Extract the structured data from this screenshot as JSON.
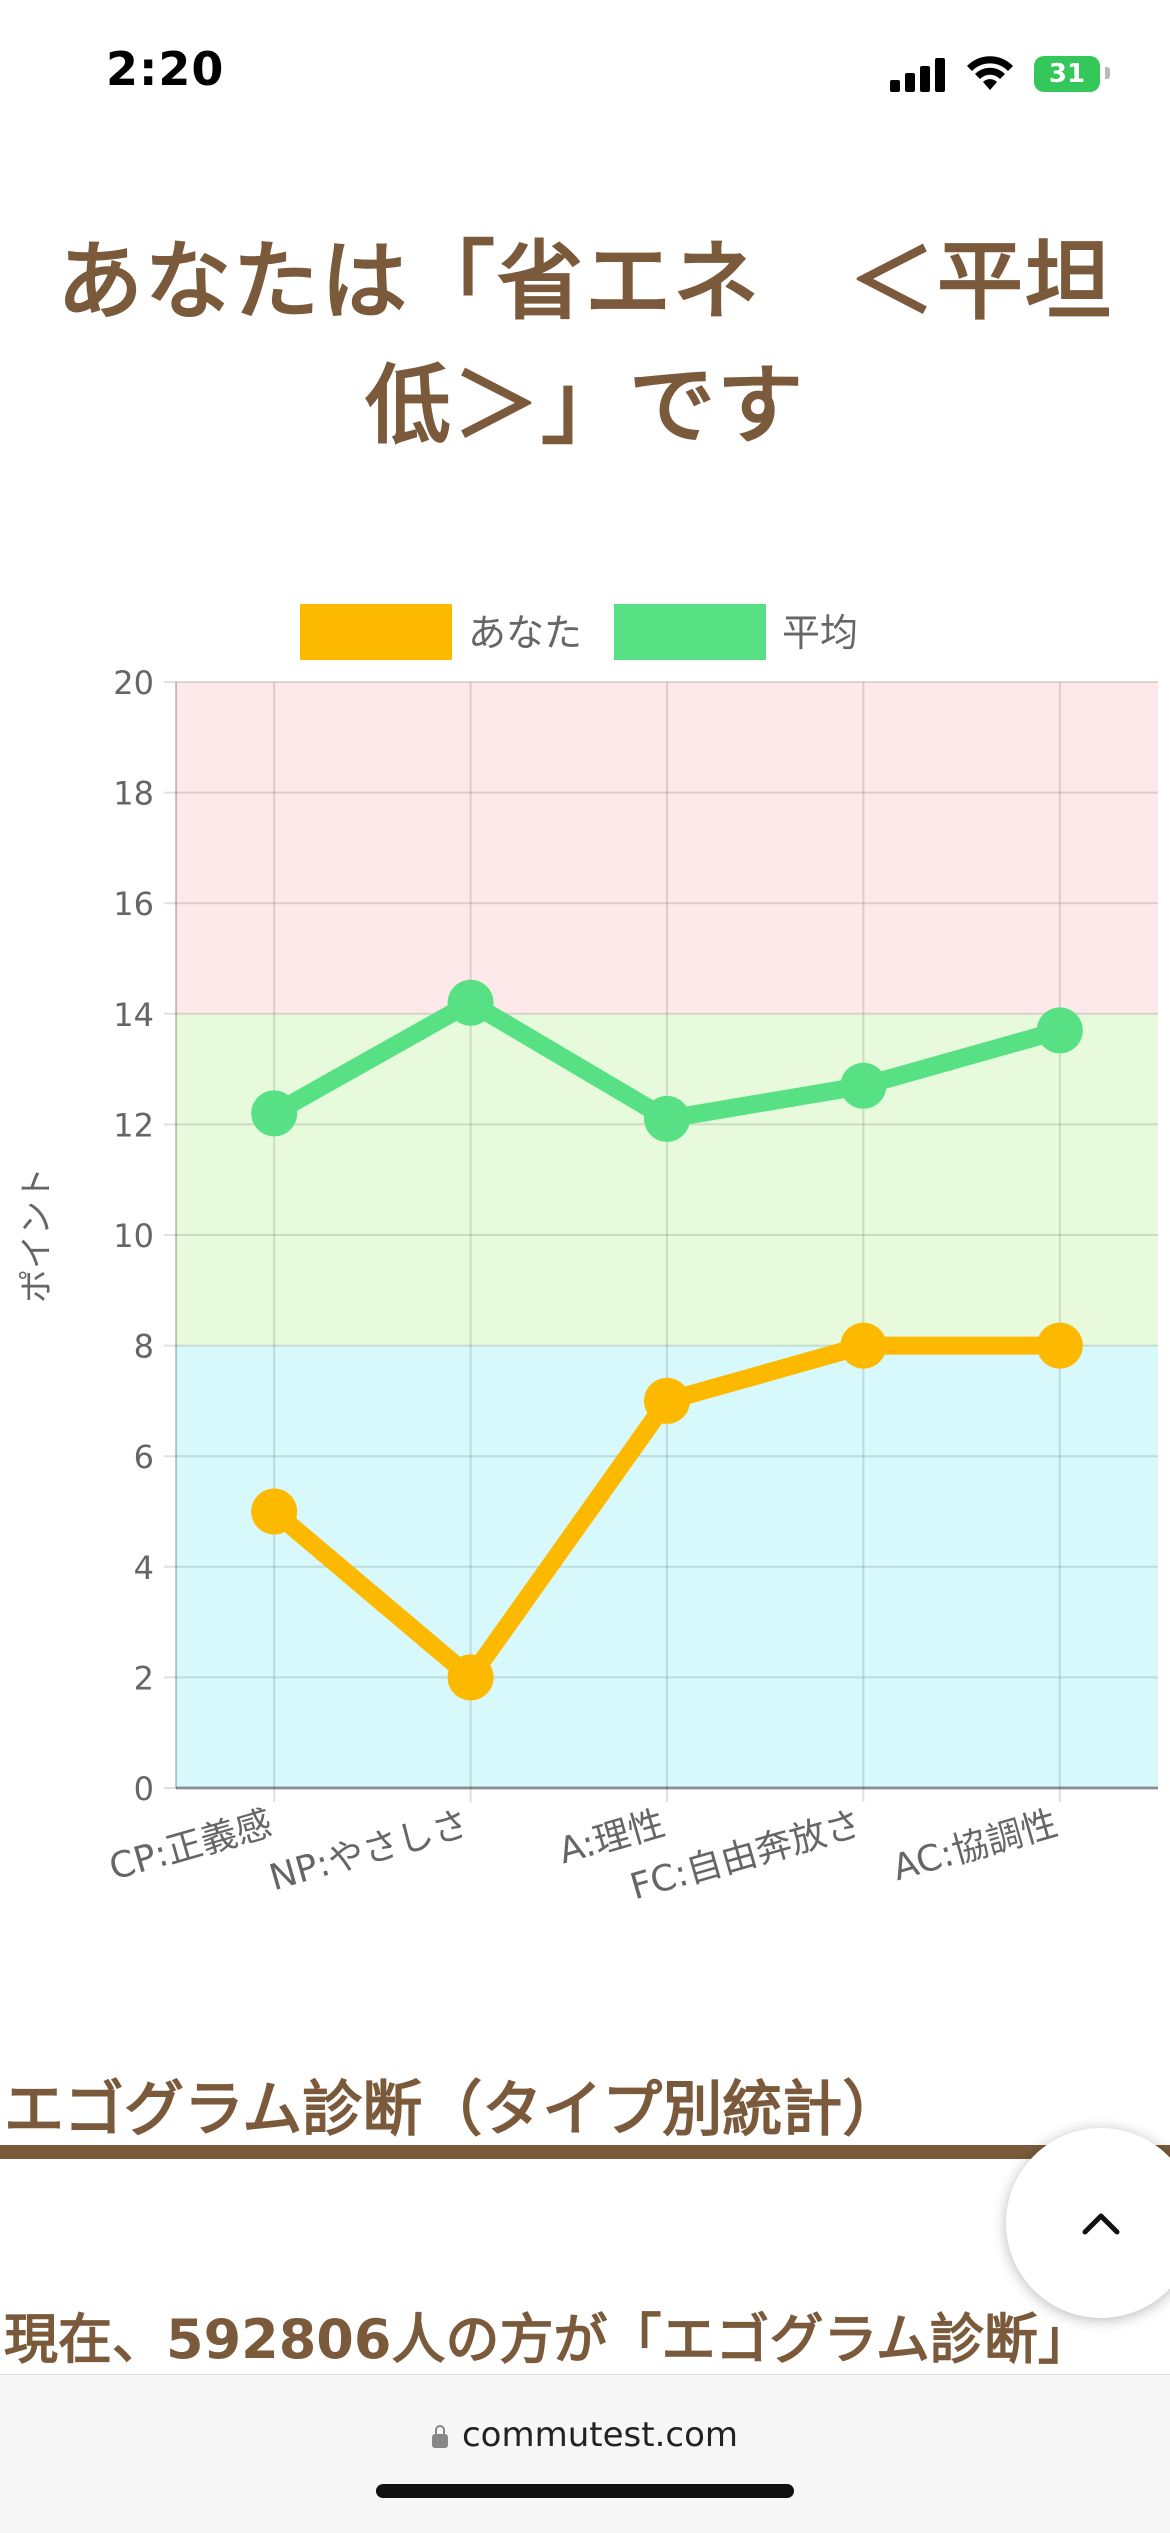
{
  "status_bar": {
    "time": "2:20",
    "battery": "31",
    "icons": [
      "cellular-signal-icon",
      "wifi-icon",
      "battery-charging-icon"
    ]
  },
  "title": "あなたは「省エネ　＜平坦低＞」です",
  "chart_data": {
    "type": "line",
    "categories": [
      "CP:正義感",
      "NP:やさしさ",
      "A:理性",
      "FC:自由奔放さ",
      "AC:協調性"
    ],
    "series": [
      {
        "name": "あなた",
        "values": [
          5,
          2,
          7,
          8,
          8
        ],
        "color": "#fcb900"
      },
      {
        "name": "平均",
        "values": [
          12.2,
          14.2,
          12.1,
          12.7,
          13.7
        ],
        "color": "#58e184"
      }
    ],
    "ylabel": "ポイント",
    "ylim": [
      0,
      20
    ],
    "yticks": [
      0,
      2,
      4,
      6,
      8,
      10,
      12,
      14,
      16,
      18,
      20
    ],
    "bands": [
      {
        "from": 0,
        "to": 8,
        "color": "#d8f9fb"
      },
      {
        "from": 8,
        "to": 14,
        "color": "#e7fbdc"
      },
      {
        "from": 14,
        "to": 20,
        "color": "#fde9ea"
      }
    ],
    "legend_position": "top",
    "grid": true
  },
  "section": {
    "heading": "エゴグラム診断（タイプ別統計）",
    "text": "現在、592806人の方が「エゴグラム診断」"
  },
  "browser": {
    "url": "commutest.com"
  },
  "colors": {
    "accent": "#7b5a3c"
  }
}
